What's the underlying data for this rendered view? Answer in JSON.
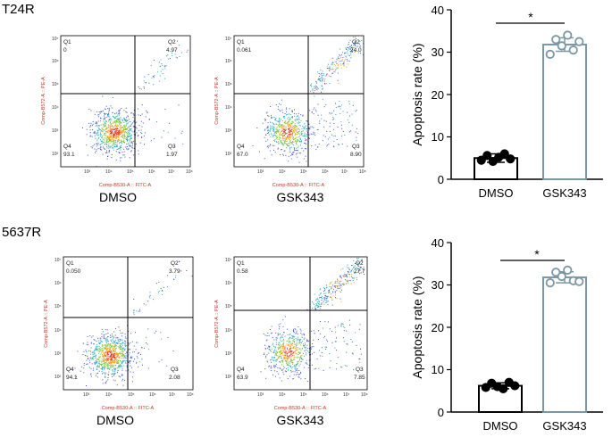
{
  "rows": [
    {
      "title": "T24R",
      "flow_panels": [
        {
          "caption": "DMSO",
          "x_axis_label": "Comp-B530-A :: FITC-A",
          "y_axis_label": "Comp-B572-A :: PE-A",
          "q1_label": "Q1",
          "q1_value": "0",
          "q2_label": "Q2",
          "q2_value": "4.97",
          "q3_label": "Q3",
          "q3_value": "1.97",
          "q4_label": "Q4",
          "q4_value": "93.1",
          "x_ticks": [
            "10³",
            "10⁴",
            "10⁵",
            "10⁶",
            "10⁷",
            "10⁸"
          ],
          "y_ticks": [
            "10⁷",
            "10⁶",
            "10⁵",
            "10⁴",
            "10³",
            "10²"
          ],
          "gate_x": 0.57,
          "gate_y": 0.4,
          "scatter": {
            "main_pop": 0.92,
            "q2_pop": 0.05,
            "q3_pop": 0.02
          }
        },
        {
          "caption": "GSK343",
          "x_axis_label": "Comp-B530-A :: FITC-A",
          "y_axis_label": "Comp-B572-A :: PE-A",
          "q1_label": "Q1",
          "q1_value": "0.061",
          "q2_label": "Q2",
          "q2_value": "24.0",
          "q3_label": "Q3",
          "q3_value": "8.90",
          "q4_label": "Q4",
          "q4_value": "67.0",
          "x_ticks": [
            "10³",
            "10⁴",
            "10⁵",
            "10⁶",
            "10⁷",
            "10⁸"
          ],
          "y_ticks": [
            "10⁷",
            "10⁶",
            "10⁵",
            "10⁴",
            "10³",
            "10²"
          ],
          "gate_x": 0.57,
          "gate_y": 0.4,
          "scatter": {
            "main_pop": 0.67,
            "q2_pop": 0.24,
            "q3_pop": 0.09
          }
        }
      ],
      "bar_chart": {
        "type": "bar",
        "categories": [
          "DMSO",
          "GSK343"
        ],
        "values": [
          5.0,
          31.8
        ],
        "errors": [
          1.0,
          1.6
        ],
        "points": [
          [
            4.5,
            5.6,
            4.2,
            5.2,
            6.0,
            4.8
          ],
          [
            29.5,
            33.0,
            31.5,
            34.0,
            30.5,
            32.5
          ]
        ],
        "ylabel": "Apoptosis rate (%)",
        "ylim": [
          0,
          40
        ],
        "yticks": [
          "0",
          "10",
          "20",
          "30",
          "40"
        ],
        "significance": "*",
        "colors": {
          "DMSO": "#000000",
          "GSK343": "#7b97a5"
        }
      }
    },
    {
      "title": "5637R",
      "flow_panels": [
        {
          "caption": "DMSO",
          "x_axis_label": "Comp-B530-A :: FITC-A",
          "y_axis_label": "Comp-B572-A :: PE-A",
          "q1_label": "Q1",
          "q1_value": "0.050",
          "q2_label": "Q2",
          "q2_value": "3.79",
          "q3_label": "Q3",
          "q3_value": "2.08",
          "q4_label": "Q4",
          "q4_value": "94.1",
          "x_ticks": [
            "10³",
            "10⁴",
            "10⁵",
            "10⁶",
            "10⁷",
            "10⁸"
          ],
          "y_ticks": [
            "10⁷",
            "10⁶",
            "10⁵",
            "10⁴",
            "10³",
            "10²"
          ],
          "gate_x": 0.57,
          "gate_y": 0.4,
          "scatter": {
            "main_pop": 0.94,
            "q2_pop": 0.04,
            "q3_pop": 0.02
          }
        },
        {
          "caption": "GSK343",
          "x_axis_label": "Comp-B530-A :: FITC-A",
          "y_axis_label": "Comp-B572-A :: PE-A",
          "q1_label": "Q1",
          "q1_value": "0.58",
          "q2_label": "Q2",
          "q2_value": "27.7",
          "q3_label": "Q3",
          "q3_value": "7.85",
          "q4_label": "Q4",
          "q4_value": "63.9",
          "x_ticks": [
            "10³",
            "10⁴",
            "10⁵",
            "10⁶",
            "10⁷",
            "10⁸"
          ],
          "y_ticks": [
            "10⁷",
            "10⁶",
            "10⁵",
            "10⁴",
            "10³",
            "10²"
          ],
          "gate_x": 0.57,
          "gate_y": 0.4,
          "scatter": {
            "main_pop": 0.64,
            "q2_pop": 0.28,
            "q3_pop": 0.08
          }
        }
      ],
      "bar_chart": {
        "type": "bar",
        "categories": [
          "DMSO",
          "GSK343"
        ],
        "values": [
          6.2,
          31.8
        ],
        "errors": [
          0.7,
          1.3
        ],
        "points": [
          [
            5.8,
            6.8,
            6.0,
            5.5,
            7.0,
            6.2
          ],
          [
            30.5,
            33.0,
            32.0,
            33.5,
            31.0,
            30.8
          ]
        ],
        "ylabel": "Apoptosis rate (%)",
        "ylim": [
          0,
          40
        ],
        "yticks": [
          "0",
          "10",
          "20",
          "30",
          "40"
        ],
        "significance": "*",
        "colors": {
          "DMSO": "#000000",
          "GSK343": "#7b97a5"
        }
      }
    }
  ]
}
